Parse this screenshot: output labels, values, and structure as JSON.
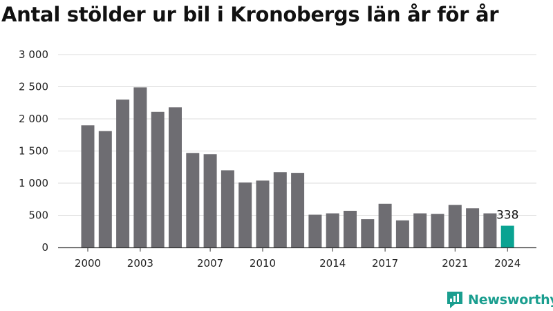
{
  "title": "Antal stölder ur bil i Kronobergs län år för år",
  "logo_text": "Newsworthy",
  "colors": {
    "bar": "#6e6d72",
    "highlight": "#0aa392",
    "grid": "#dcdcdc",
    "axis": "#333333",
    "logo": "#1a9e8f"
  },
  "chart_data": {
    "type": "bar",
    "title": "Antal stölder ur bil i Kronobergs län år för år",
    "xlabel": "",
    "ylabel": "",
    "x": [
      2000,
      2001,
      2002,
      2003,
      2004,
      2005,
      2006,
      2007,
      2008,
      2009,
      2010,
      2011,
      2012,
      2013,
      2014,
      2015,
      2016,
      2017,
      2018,
      2019,
      2020,
      2021,
      2022,
      2023,
      2024
    ],
    "values": [
      1900,
      1810,
      2300,
      2490,
      2110,
      2180,
      1470,
      1450,
      1200,
      1010,
      1040,
      1170,
      1160,
      510,
      530,
      570,
      440,
      680,
      420,
      530,
      520,
      660,
      610,
      530,
      338
    ],
    "highlight_index": 24,
    "highlight_label": "338",
    "ylim": [
      0,
      3000
    ],
    "yticks": [
      0,
      500,
      1000,
      1500,
      2000,
      2500,
      3000
    ],
    "ytick_labels": [
      "0",
      "500",
      "1 000",
      "1 500",
      "2 000",
      "2 500",
      "3 000"
    ],
    "xticks": [
      2000,
      2003,
      2007,
      2010,
      2014,
      2017,
      2021,
      2024
    ],
    "xtick_labels": [
      "2000",
      "2003",
      "2007",
      "2010",
      "2014",
      "2017",
      "2021",
      "2024"
    ],
    "grid": true,
    "legend": "none"
  }
}
